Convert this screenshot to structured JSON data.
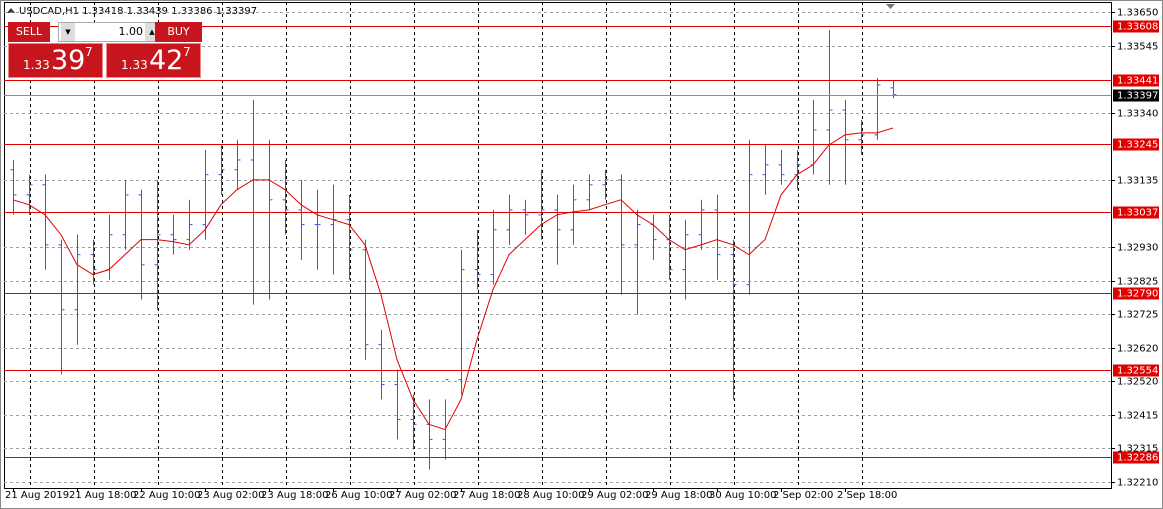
{
  "chart_data": {
    "type": "ohlc",
    "title": "USDCAD,H1  1.33418 1.33439 1.33386 1.33397",
    "categories": [
      "21 Aug 2019",
      null,
      null,
      null,
      "21 Aug 18:00",
      null,
      null,
      null,
      "22 Aug 10:00",
      null,
      null,
      null,
      "23 Aug 02:00",
      null,
      null,
      null,
      "23 Aug 18:00",
      null,
      null,
      null,
      "26 Aug 10:00",
      null,
      null,
      null,
      "27 Aug 02:00",
      null,
      null,
      null,
      "27 Aug 18:00",
      null,
      null,
      null,
      "28 Aug 10:00",
      null,
      null,
      null,
      "29 Aug 02:00",
      null,
      null,
      null,
      "29 Aug 18:00",
      null,
      null,
      null,
      "30 Aug 10:00",
      null,
      null,
      null,
      "2 Sep 02:00",
      null,
      null,
      null,
      "2 Sep 18:00",
      null,
      null,
      null
    ],
    "ohlc": {
      "color": "#3a5bd0",
      "open": [
        1.33167,
        1.3309,
        1.33121,
        1.32937,
        1.32738,
        1.32907,
        1.32861,
        1.32968,
        1.3309,
        1.32876,
        1.32968,
        1.32953,
        1.32999,
        1.33152,
        1.33167,
        1.33197,
        1.33136,
        1.33075,
        1.33044,
        1.32999,
        1.32999,
        1.33014,
        1.32922,
        1.32631,
        1.32509,
        1.32402,
        1.32387,
        1.32341,
        1.32524,
        1.32861,
        1.32846,
        1.32983,
        1.33044,
        1.33029,
        1.33044,
        1.32983,
        1.33075,
        1.33121,
        1.33136,
        1.32937,
        1.32999,
        1.32953,
        1.32861,
        1.32968,
        1.33044,
        1.32907,
        1.32815,
        1.33152,
        1.33182,
        1.33152,
        1.33182,
        1.33289,
        1.3335,
        1.33259,
        1.33274,
        1.33418
      ],
      "high": [
        1.33197,
        1.33152,
        1.33152,
        1.32953,
        1.32968,
        1.32953,
        1.33029,
        1.33136,
        1.33106,
        1.33136,
        1.33029,
        1.33075,
        1.33228,
        1.33243,
        1.33259,
        1.33381,
        1.33259,
        1.33197,
        1.33136,
        1.33106,
        1.33121,
        1.3309,
        1.32953,
        1.32677,
        1.32555,
        1.32478,
        1.32463,
        1.32463,
        1.32922,
        1.32983,
        1.33044,
        1.3309,
        1.33075,
        1.33167,
        1.3309,
        1.33121,
        1.33152,
        1.33167,
        1.33152,
        1.33044,
        1.33029,
        1.33029,
        1.33014,
        1.33075,
        1.3309,
        1.32953,
        1.33259,
        1.33243,
        1.33228,
        1.33228,
        1.33381,
        1.33595,
        1.33381,
        1.3332,
        1.33448,
        1.33439
      ],
      "low": [
        1.33029,
        1.33029,
        1.32861,
        1.3254,
        1.32631,
        1.32815,
        1.3283,
        1.32922,
        1.32769,
        1.32738,
        1.32907,
        1.32922,
        1.32953,
        1.3309,
        1.33106,
        1.32754,
        1.32769,
        1.32968,
        1.32891,
        1.32861,
        1.32846,
        1.3283,
        1.32585,
        1.32463,
        1.32341,
        1.3231,
        1.32249,
        1.32279,
        1.32478,
        1.328,
        1.32815,
        1.32937,
        1.32968,
        1.32953,
        1.32876,
        1.32937,
        1.33044,
        1.33075,
        1.32784,
        1.32723,
        1.32891,
        1.3283,
        1.32769,
        1.32922,
        1.3283,
        1.32463,
        1.32784,
        1.3309,
        1.33121,
        1.33106,
        1.33152,
        1.33121,
        1.33121,
        1.33213,
        1.33259,
        1.33386
      ],
      "close": [
        1.3309,
        1.33121,
        1.32937,
        1.32738,
        1.32907,
        1.32861,
        1.32968,
        1.3309,
        1.32876,
        1.32968,
        1.32953,
        1.32999,
        1.33152,
        1.33167,
        1.33197,
        1.33136,
        1.33075,
        1.33044,
        1.32999,
        1.32999,
        1.33014,
        1.32922,
        1.32631,
        1.32509,
        1.32402,
        1.32387,
        1.32341,
        1.32524,
        1.32861,
        1.32846,
        1.32983,
        1.33044,
        1.33029,
        1.33044,
        1.32983,
        1.33075,
        1.33121,
        1.33136,
        1.32937,
        1.32999,
        1.32953,
        1.32861,
        1.32968,
        1.33044,
        1.32907,
        1.32815,
        1.33152,
        1.33182,
        1.33152,
        1.33182,
        1.33289,
        1.3335,
        1.33259,
        1.33274,
        1.33427,
        1.33397
      ]
    },
    "moving_average": {
      "color": "#e00000",
      "values": [
        1.33075,
        1.3306,
        1.33029,
        1.32968,
        1.32876,
        1.32846,
        1.32861,
        1.32907,
        1.32953,
        1.32953,
        1.32947,
        1.32937,
        1.32983,
        1.3306,
        1.33106,
        1.33136,
        1.33136,
        1.33106,
        1.3306,
        1.33029,
        1.33014,
        1.32999,
        1.32937,
        1.32784,
        1.32585,
        1.32463,
        1.32387,
        1.32371,
        1.32463,
        1.32647,
        1.328,
        1.32907,
        1.32953,
        1.32999,
        1.33029,
        1.33038,
        1.33044,
        1.3306,
        1.33075,
        1.33029,
        1.32999,
        1.32953,
        1.32922,
        1.32937,
        1.32953,
        1.32937,
        1.32907,
        1.32953,
        1.3309,
        1.33152,
        1.33182,
        1.33243,
        1.33274,
        1.3328,
        1.3328,
        1.33295
      ]
    },
    "levels": {
      "color": "#e00000",
      "values": [
        1.33608,
        1.33441,
        1.33245,
        1.33037,
        {
          "value": 1.3279,
          "label": "1.32790"
        },
        1.32554,
        1.32286
      ]
    },
    "ylim": [
      1.32192,
      1.33681
    ],
    "yticks": [
      {
        "value": 1.3365,
        "label": "1.33650"
      },
      1.33545,
      {
        "value": 1.3334,
        "label": "1.33340"
      },
      1.33135,
      {
        "value": 1.3293,
        "label": "1.32930"
      },
      1.32825,
      1.32725,
      {
        "value": 1.3262,
        "label": "1.32620"
      },
      {
        "value": 1.3252,
        "label": "1.32520"
      },
      1.32415,
      1.32315,
      {
        "value": 1.3221,
        "label": "1.32210"
      }
    ],
    "grid": true
  },
  "trade_panel": {
    "sell_label": "SELL",
    "buy_label": "BUY",
    "volume": "1.00",
    "sell_price": {
      "big_figure": "1.33",
      "pips": "39",
      "fraction": "7"
    },
    "buy_price": {
      "big_figure": "1.33",
      "pips": "42",
      "fraction": "7"
    }
  }
}
